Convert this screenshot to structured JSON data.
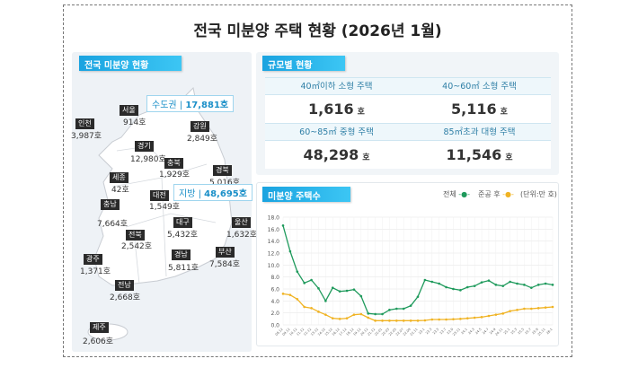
{
  "title": "전국 미분양 주택 현황 (2026년 1월)",
  "map_panel": {
    "header": "전국 미분양 현황",
    "capital_area": {
      "label": "수도권",
      "value": "17,881호"
    },
    "provinces": {
      "label": "지방",
      "value": "48,695호"
    },
    "regions": [
      {
        "name": "서울",
        "value": "914호"
      },
      {
        "name": "인천",
        "value": "3,987호"
      },
      {
        "name": "강원",
        "value": "2,849호"
      },
      {
        "name": "경기",
        "value": "12,980호"
      },
      {
        "name": "충북",
        "value": "1,929호"
      },
      {
        "name": "세종",
        "value": "42호"
      },
      {
        "name": "경북",
        "value": "5,016호"
      },
      {
        "name": "대전",
        "value": "1,549호"
      },
      {
        "name": "충남",
        "value": "7,664호"
      },
      {
        "name": "대구",
        "value": "5,432호"
      },
      {
        "name": "울산",
        "value": "1,632호"
      },
      {
        "name": "전북",
        "value": "2,542호"
      },
      {
        "name": "경남",
        "value": "5,811호"
      },
      {
        "name": "부산",
        "value": "7,584호"
      },
      {
        "name": "광주",
        "value": "1,371호"
      },
      {
        "name": "전남",
        "value": "2,668호"
      },
      {
        "name": "제주",
        "value": "2,606호"
      }
    ]
  },
  "size_panel": {
    "header": "규모별 현황",
    "unit": "호",
    "cells": [
      {
        "label": "40㎡이하 소형 주택",
        "value": "1,616"
      },
      {
        "label": "40~60㎡ 소형 주택",
        "value": "5,116"
      },
      {
        "label": "60~85㎡ 중형 주택",
        "value": "48,298"
      },
      {
        "label": "85㎡초과 대형 주택",
        "value": "11,546"
      }
    ]
  },
  "chart_panel": {
    "header": "미분양 주택수",
    "legend": {
      "total": "전체",
      "completed": "준공 후",
      "unit": "(단위:만 호)"
    },
    "colors": {
      "total": "#1f9a5c",
      "completed": "#f0b323"
    }
  },
  "chart_data": {
    "type": "line",
    "ylim": [
      0,
      18
    ],
    "yticks": [
      "0.0",
      "2.0",
      "4.0",
      "6.0",
      "8.0",
      "10.0",
      "12.0",
      "14.0",
      "16.0",
      "18.0"
    ],
    "grid": true,
    "legend_position": "top-right",
    "categories": [
      "08.12",
      "09.12",
      "10.12",
      "11.12",
      "12.12",
      "13.12",
      "14.12",
      "15.12",
      "16.12",
      "17.12",
      "18.12",
      "19.12",
      "20.12",
      "21.12",
      "22.01",
      "22.03",
      "22.05",
      "22.07",
      "22.09",
      "22.11",
      "23.1",
      "23.3",
      "23.5",
      "23.7",
      "23.9",
      "23.11",
      "24.1",
      "24.3",
      "24.5",
      "24.7",
      "24.9",
      "24.11",
      "25.1",
      "25.3",
      "25.5",
      "25.7",
      "25.9",
      "25.11",
      "26.1"
    ],
    "series": [
      {
        "name": "전체",
        "values": [
          16.6,
          12.3,
          8.9,
          7.0,
          7.5,
          6.1,
          4.0,
          6.2,
          5.6,
          5.7,
          5.9,
          4.8,
          1.9,
          1.8,
          1.8,
          2.5,
          2.7,
          2.7,
          3.2,
          4.7,
          7.5,
          7.2,
          6.9,
          6.3,
          6.0,
          5.8,
          6.3,
          6.5,
          7.1,
          7.4,
          6.7,
          6.5,
          7.2,
          6.9,
          6.7,
          6.2,
          6.7,
          6.9,
          6.7
        ]
      },
      {
        "name": "준공 후",
        "values": [
          5.2,
          5.0,
          4.3,
          3.0,
          2.8,
          2.2,
          1.7,
          1.1,
          1.0,
          1.1,
          1.7,
          1.8,
          1.2,
          0.7,
          0.7,
          0.7,
          0.7,
          0.7,
          0.7,
          0.7,
          0.75,
          0.9,
          0.9,
          0.9,
          0.95,
          1.0,
          1.1,
          1.2,
          1.3,
          1.5,
          1.7,
          1.9,
          2.3,
          2.5,
          2.7,
          2.7,
          2.8,
          2.9,
          3.0
        ]
      }
    ]
  }
}
